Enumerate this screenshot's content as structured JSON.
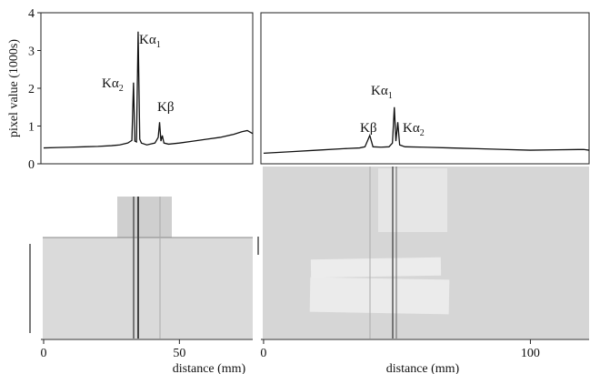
{
  "chart_data": [
    {
      "type": "line",
      "ylabel": "pixel value (1000s)",
      "xlabel": "distance (mm)",
      "color": "#111111",
      "xlim": [
        -1,
        77
      ],
      "xticks": [
        0,
        50
      ],
      "ylim": [
        0,
        4
      ],
      "yticks": [
        0,
        1,
        2,
        3,
        4
      ],
      "x": [
        0,
        5,
        10,
        15,
        20,
        25,
        28,
        31,
        32.5,
        33.1,
        33.6,
        34.2,
        34.8,
        35.4,
        36,
        38,
        41,
        42.2,
        42.7,
        43.2,
        43.7,
        44.3,
        46,
        50,
        55,
        60,
        65,
        70,
        73,
        75,
        77
      ],
      "values": [
        0.42,
        0.43,
        0.44,
        0.45,
        0.46,
        0.48,
        0.5,
        0.55,
        0.62,
        2.15,
        0.6,
        0.58,
        3.5,
        0.65,
        0.55,
        0.5,
        0.55,
        0.7,
        1.1,
        0.6,
        0.75,
        0.55,
        0.52,
        0.55,
        0.6,
        0.65,
        0.7,
        0.78,
        0.85,
        0.88,
        0.8
      ],
      "annotations": [
        {
          "text": "Kα",
          "sub": "1"
        },
        {
          "text": "Kα",
          "sub": "2"
        },
        {
          "text": "Kβ"
        }
      ]
    },
    {
      "type": "line",
      "xlabel": "distance (mm)",
      "color": "#111111",
      "xlim": [
        -1,
        122
      ],
      "xticks": [
        0,
        100
      ],
      "ylim": [
        0,
        4
      ],
      "x": [
        0,
        10,
        20,
        30,
        36,
        38,
        39.2,
        39.8,
        40.4,
        41,
        44,
        47,
        48.3,
        49,
        49.6,
        50.3,
        51,
        53,
        60,
        70,
        80,
        90,
        100,
        110,
        120,
        122
      ],
      "values": [
        0.28,
        0.32,
        0.36,
        0.4,
        0.42,
        0.45,
        0.65,
        0.75,
        0.6,
        0.45,
        0.44,
        0.45,
        0.55,
        1.5,
        0.6,
        1.1,
        0.5,
        0.45,
        0.44,
        0.42,
        0.4,
        0.38,
        0.36,
        0.37,
        0.38,
        0.36
      ],
      "annotations": [
        {
          "text": "Kα",
          "sub": "1"
        },
        {
          "text": "Kβ"
        },
        {
          "text": "Kα",
          "sub": "2"
        }
      ]
    }
  ]
}
